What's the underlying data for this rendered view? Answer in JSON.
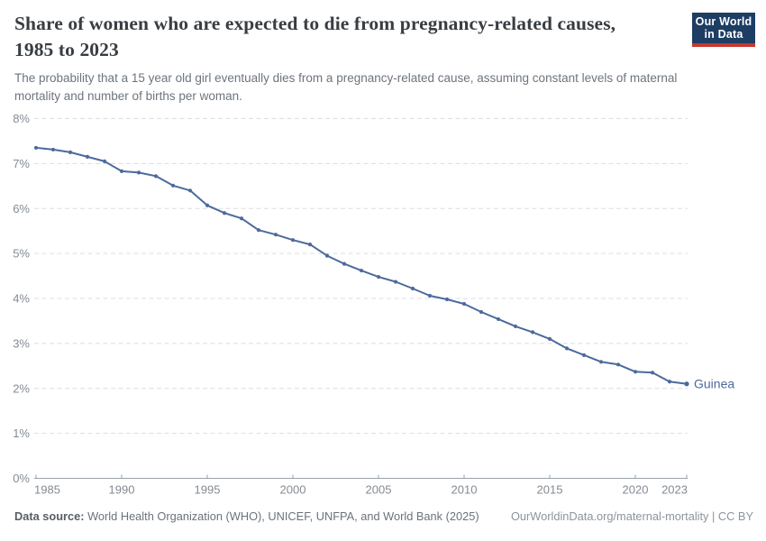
{
  "header": {
    "title": "Share of women who are expected to die from pregnancy-related causes, 1985 to 2023",
    "subtitle": "The probability that a 15 year old girl eventually dies from a pregnancy-related cause, assuming constant levels of maternal mortality and number of births per woman.",
    "logo_line1": "Our World",
    "logo_line2": "in Data"
  },
  "chart_data": {
    "type": "line",
    "title": "Share of women who are expected to die from pregnancy-related causes, 1985 to 2023",
    "subtitle": "The probability that a 15 year old girl eventually dies from a pregnancy-related cause, assuming constant levels of maternal mortality and number of births per woman.",
    "x": [
      1985,
      1986,
      1987,
      1988,
      1989,
      1990,
      1991,
      1992,
      1993,
      1994,
      1995,
      1996,
      1997,
      1998,
      1999,
      2000,
      2001,
      2002,
      2003,
      2004,
      2005,
      2006,
      2007,
      2008,
      2009,
      2010,
      2011,
      2012,
      2013,
      2014,
      2015,
      2016,
      2017,
      2018,
      2019,
      2020,
      2021,
      2022,
      2023
    ],
    "series": [
      {
        "name": "Guinea",
        "color": "#4c6a9c",
        "values": [
          7.35,
          7.31,
          7.25,
          7.15,
          7.05,
          6.83,
          6.8,
          6.72,
          6.51,
          6.4,
          6.07,
          5.9,
          5.78,
          5.52,
          5.42,
          5.3,
          5.2,
          4.95,
          4.77,
          4.62,
          4.48,
          4.37,
          4.22,
          4.06,
          3.98,
          3.88,
          3.7,
          3.54,
          3.38,
          3.25,
          3.1,
          2.89,
          2.74,
          2.59,
          2.53,
          2.37,
          2.35,
          2.15,
          2.1
        ]
      }
    ],
    "ylim": [
      0,
      8
    ],
    "xlim": [
      1985,
      2023
    ],
    "yticks": [
      0,
      1,
      2,
      3,
      4,
      5,
      6,
      7,
      8
    ],
    "ytick_labels": [
      "0%",
      "1%",
      "2%",
      "3%",
      "4%",
      "5%",
      "6%",
      "7%",
      "8%"
    ],
    "xticks": [
      1985,
      1990,
      1995,
      2000,
      2005,
      2010,
      2015,
      2020,
      2023
    ],
    "grid": "horizontal-dashed",
    "legend_position": "end-of-line-label"
  },
  "footer": {
    "data_source_label": "Data source:",
    "data_source_text": " World Health Organization (WHO), UNICEF, UNFPA, and World Bank (2025)",
    "link_text": "OurWorldinData.org/maternal-mortality | CC BY"
  },
  "colors": {
    "line": "#4c6a9c",
    "grid": "#dcdee0",
    "axis": "#9aa1a7",
    "tick_label": "#848b93",
    "logo_bg": "#1d3d63",
    "logo_stripe": "#c7362f"
  }
}
